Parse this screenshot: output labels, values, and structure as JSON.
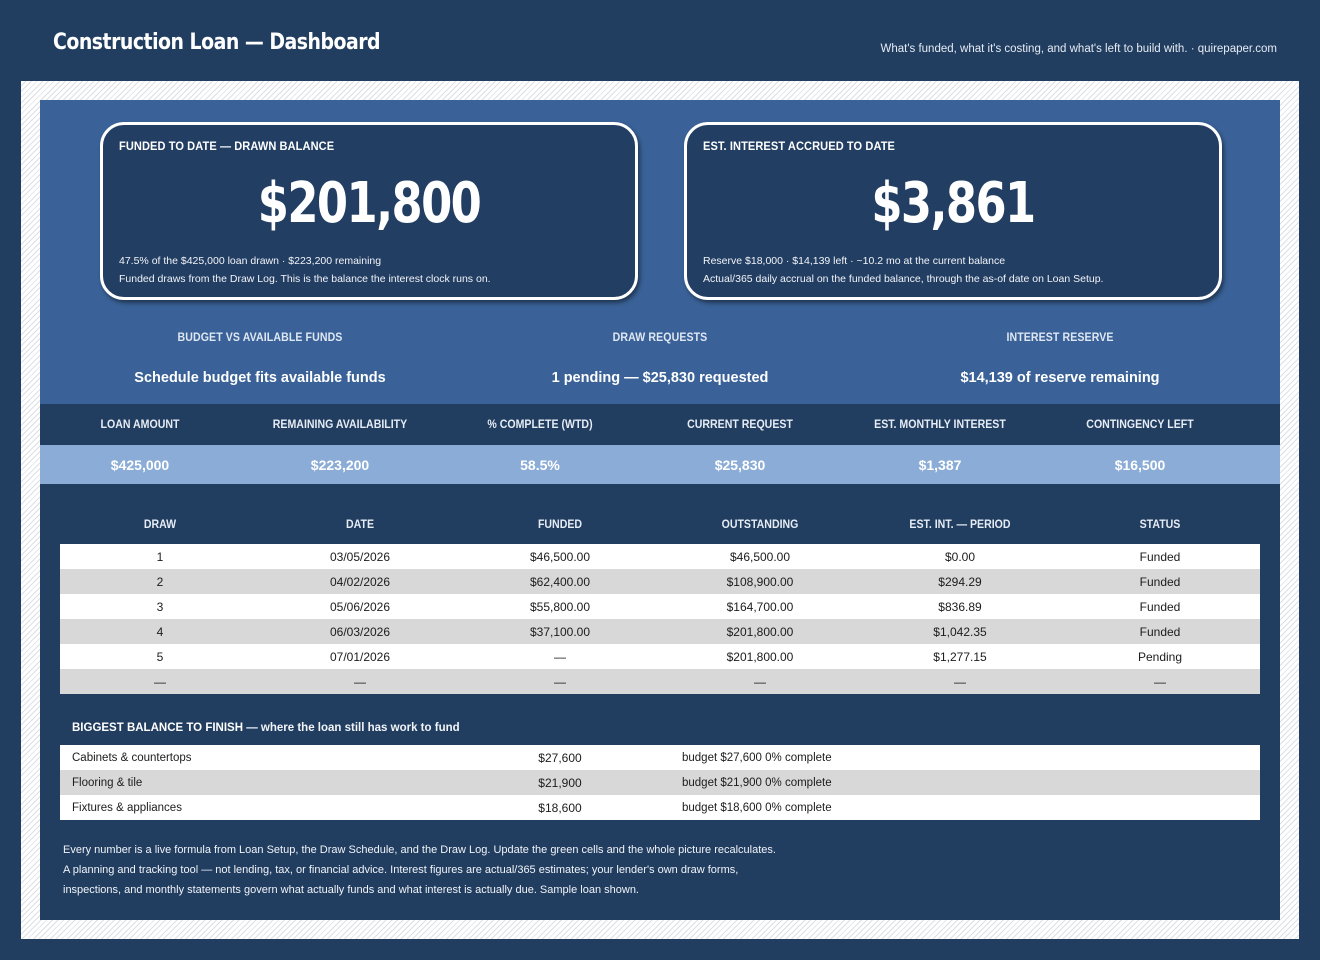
{
  "header": {
    "title": "Construction Loan — Dashboard",
    "tagline": "What's funded, what it's costing, and what's left to build with.  ·  quirepaper.com"
  },
  "kpis": {
    "funded": {
      "label": "FUNDED TO DATE — DRAWN BALANCE",
      "value": "$201,800",
      "sub1": "47.5% of the $425,000 loan drawn  ·  $223,200 remaining",
      "sub2": "Funded draws from the Draw Log. This is the balance the interest clock runs on."
    },
    "interest": {
      "label": "EST. INTEREST ACCRUED TO DATE",
      "value": "$3,861",
      "sub1": "Reserve $18,000  ·  $14,139 left  ·  ~10.2 mo at the current balance",
      "sub2": "Actual/365 daily accrual on the funded balance, through the as-of date on Loan Setup."
    }
  },
  "status": [
    {
      "label": "BUDGET VS AVAILABLE FUNDS",
      "value": "Schedule budget fits available funds"
    },
    {
      "label": "DRAW REQUESTS",
      "value": "1 pending — $25,830 requested"
    },
    {
      "label": "INTEREST RESERVE",
      "value": "$14,139 of reserve remaining"
    }
  ],
  "metrics": {
    "headers": [
      "LOAN AMOUNT",
      "REMAINING AVAILABILITY",
      "% COMPLETE (WTD)",
      "CURRENT REQUEST",
      "EST. MONTHLY INTEREST",
      "CONTINGENCY LEFT"
    ],
    "values": [
      "$425,000",
      "$223,200",
      "58.5%",
      "$25,830",
      "$1,387",
      "$16,500"
    ]
  },
  "draws": {
    "headers": [
      "DRAW",
      "DATE",
      "FUNDED",
      "OUTSTANDING",
      "EST. INT. — PERIOD",
      "STATUS"
    ],
    "rows": [
      [
        "1",
        "03/05/2026",
        "$46,500.00",
        "$46,500.00",
        "$0.00",
        "Funded"
      ],
      [
        "2",
        "04/02/2026",
        "$62,400.00",
        "$108,900.00",
        "$294.29",
        "Funded"
      ],
      [
        "3",
        "05/06/2026",
        "$55,800.00",
        "$164,700.00",
        "$836.89",
        "Funded"
      ],
      [
        "4",
        "06/03/2026",
        "$37,100.00",
        "$201,800.00",
        "$1,042.35",
        "Funded"
      ],
      [
        "5",
        "07/01/2026",
        "—",
        "$201,800.00",
        "$1,277.15",
        "Pending"
      ],
      [
        "—",
        "—",
        "—",
        "—",
        "—",
        "—"
      ]
    ]
  },
  "finish": {
    "title": "BIGGEST BALANCE TO FINISH",
    "title_rest": " — where the loan still has work to fund",
    "rows": [
      {
        "name": "Cabinets & countertops",
        "amount": "$27,600",
        "note": "budget $27,600  0% complete"
      },
      {
        "name": "Flooring & tile",
        "amount": "$21,900",
        "note": "budget $21,900  0% complete"
      },
      {
        "name": "Fixtures & appliances",
        "amount": "$18,600",
        "note": "budget $18,600  0% complete"
      }
    ]
  },
  "footnote": {
    "line1": "Every number is a live formula from Loan Setup, the Draw Schedule, and the Draw Log. Update the green cells and the whole picture recalculates.",
    "line2": "A planning and tracking tool — not lending, tax, or financial advice. Interest figures are actual/365 estimates; your lender's own draw forms,",
    "line3": "inspections, and monthly statements govern what actually funds and what interest is actually due. Sample loan shown."
  }
}
